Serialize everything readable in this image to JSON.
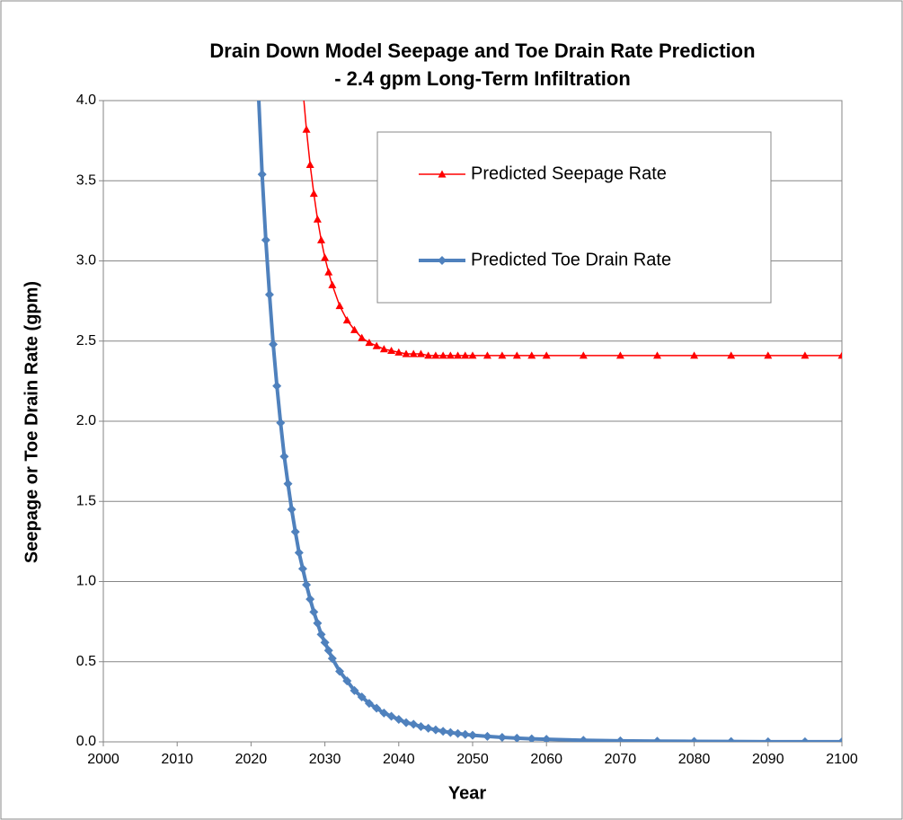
{
  "chart_data": {
    "type": "line",
    "title": [
      "Drain Down Model Seepage and Toe Drain Rate Prediction",
      "- 2.4 gpm Long-Term Infiltration"
    ],
    "xlabel": "Year",
    "ylabel": "Seepage or Toe Drain Rate (gpm)",
    "xlim": [
      2000,
      2100
    ],
    "xticks": [
      2000,
      2010,
      2020,
      2030,
      2040,
      2050,
      2060,
      2070,
      2080,
      2090,
      2100
    ],
    "ylim": [
      0,
      4
    ],
    "yticks": [
      {
        "value": 0,
        "label": "0.0"
      },
      0.5,
      {
        "value": 1,
        "label": "1.0"
      },
      1.5,
      {
        "value": 2,
        "label": "2.0"
      },
      2.5,
      {
        "value": 3,
        "label": "3.0"
      },
      3.5,
      {
        "value": 4,
        "label": "4.0"
      }
    ],
    "grid": true,
    "series": [
      {
        "name": "Predicted Seepage Rate",
        "color": "#ff0000",
        "marker": "triangle",
        "x": [
          2027,
          2027.5,
          2028,
          2028.5,
          2029,
          2029.5,
          2030,
          2030.5,
          2031,
          2032,
          2033,
          2034,
          2035,
          2036,
          2037,
          2038,
          2039,
          2040,
          2041,
          2042,
          2043,
          2044,
          2045,
          2046,
          2047,
          2048,
          2049,
          2050,
          2052,
          2054,
          2056,
          2058,
          2060,
          2065,
          2070,
          2075,
          2080,
          2085,
          2090,
          2095,
          2100
        ],
        "values": [
          4.08,
          3.82,
          3.6,
          3.42,
          3.26,
          3.13,
          3.02,
          2.93,
          2.85,
          2.72,
          2.63,
          2.57,
          2.52,
          2.49,
          2.47,
          2.45,
          2.44,
          2.43,
          2.42,
          2.42,
          2.42,
          2.41,
          2.41,
          2.41,
          2.41,
          2.41,
          2.41,
          2.41,
          2.41,
          2.41,
          2.41,
          2.41,
          2.41,
          2.41,
          2.41,
          2.41,
          2.41,
          2.41,
          2.41,
          2.41,
          2.41
        ]
      },
      {
        "name": "Predicted Toe Drain Rate",
        "color": "#4f81bd",
        "marker": "diamond",
        "x": [
          2021,
          2021.5,
          2022,
          2022.5,
          2023,
          2023.5,
          2024,
          2024.5,
          2025,
          2025.5,
          2026,
          2026.5,
          2027,
          2027.5,
          2028,
          2028.5,
          2029,
          2029.5,
          2030,
          2030.5,
          2031,
          2032,
          2033,
          2034,
          2035,
          2036,
          2037,
          2038,
          2039,
          2040,
          2041,
          2042,
          2043,
          2044,
          2045,
          2046,
          2047,
          2048,
          2049,
          2050,
          2052,
          2054,
          2056,
          2058,
          2060,
          2065,
          2070,
          2075,
          2080,
          2085,
          2090,
          2095,
          2100
        ],
        "values": [
          4.05,
          3.54,
          3.13,
          2.79,
          2.48,
          2.22,
          1.99,
          1.78,
          1.61,
          1.45,
          1.31,
          1.18,
          1.08,
          0.98,
          0.89,
          0.81,
          0.74,
          0.67,
          0.62,
          0.57,
          0.52,
          0.44,
          0.38,
          0.32,
          0.28,
          0.24,
          0.21,
          0.18,
          0.16,
          0.14,
          0.12,
          0.11,
          0.095,
          0.085,
          0.075,
          0.066,
          0.058,
          0.052,
          0.046,
          0.041,
          0.034,
          0.028,
          0.023,
          0.019,
          0.016,
          0.01,
          0.006,
          0.004,
          0.003,
          0.002,
          0.001,
          0.001,
          0.001
        ]
      }
    ]
  }
}
